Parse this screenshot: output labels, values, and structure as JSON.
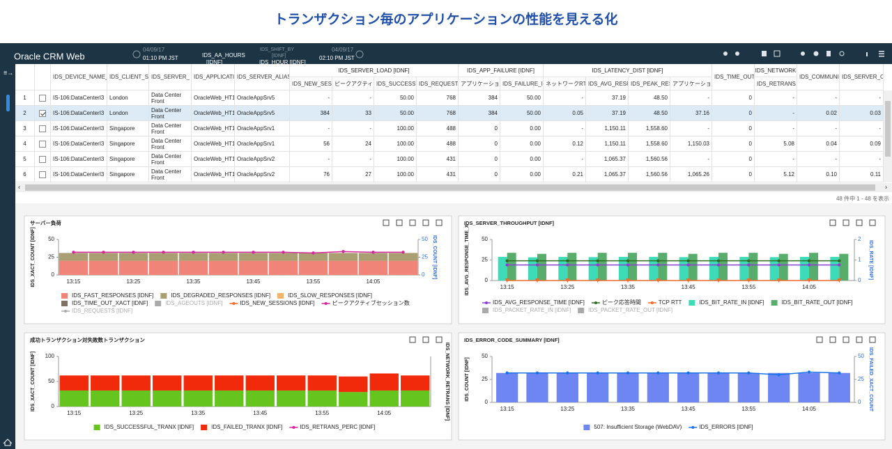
{
  "banner_title": "トランザクション毎のアプリケーションの性能を見える化",
  "header": {
    "app_name": "Oracle CRM Web",
    "start_date": "04/09/17",
    "start_time": "01:10 PM JST",
    "range": "IDS_AA_HOURS",
    "range_unit": "[IDNF]",
    "shift": "IDS_SHIFT_BY",
    "shift_unit": "[IDNF]",
    "interval": "IDS_HOUR [IDNF]",
    "end_date": "04/09/17",
    "end_time": "02:10 PM JST"
  },
  "table": {
    "columns": [
      "IDS_DEVICE_NAME_",
      "IDS_CLIENT_S",
      "IDS_SERVER_",
      "IDS_APPLICATI",
      "IDS_SERVER_ALIAS",
      {
        "group": "IDS_SERVER_LOAD [IDNF]",
        "columns": [
          "IDS_NEW_SES",
          "ピークアクティ",
          "IDS_SUCCESS",
          "IDS_REQUEST"
        ]
      },
      {
        "group": "IDS_APP_FAILURE [IDNF]",
        "columns": [
          "アプリケーショ",
          "IDS_FAILURE_I"
        ]
      },
      {
        "group": "IDS_LATENCY_DIST [IDNF]",
        "columns": [
          "ネットワークRT",
          "IDS_AVG_RESP",
          "IDS_PEAK_RES",
          "アプリケーショ"
        ]
      },
      "IDS_TIME_OUT",
      {
        "group": "IDS_NETWORK",
        "columns": [
          "IDS_RETRANS"
        ]
      },
      "IDS_COMMUNI",
      "IDS_SERVER_C"
    ],
    "rows": [
      {
        "no": 1,
        "checked": false,
        "cells": [
          "IS-106:DataCenterI3",
          "London",
          "Data Center Front",
          "OracleWeb_HT1",
          "OracleAppSrv5",
          "-",
          "-",
          "50.00",
          "768",
          "384",
          "50.00",
          "-",
          "37.19",
          "48.50",
          "-",
          "0",
          "-",
          "-",
          "-"
        ]
      },
      {
        "no": 2,
        "checked": true,
        "cells": [
          "IS-106:DataCenterI3",
          "London",
          "Data Center Front",
          "OracleWeb_HT1",
          "OracleAppSrv5",
          "384",
          "33",
          "50.00",
          "768",
          "384",
          "50.00",
          "0.05",
          "37.19",
          "48.50",
          "37.16",
          "0",
          "-",
          "0.02",
          "0.03"
        ]
      },
      {
        "no": 3,
        "checked": false,
        "cells": [
          "IS-106:DataCenterI3",
          "Singapore",
          "Data Center Front",
          "OracleWeb_HT1",
          "OracleAppSrv1",
          "-",
          "-",
          "100.00",
          "488",
          "0",
          "0.00",
          "-",
          "1,150.11",
          "1,558.60",
          "-",
          "0",
          "-",
          "-",
          "-"
        ]
      },
      {
        "no": 4,
        "checked": false,
        "cells": [
          "IS-106:DataCenterI3",
          "Singapore",
          "Data Center Front",
          "OracleWeb_HT1",
          "OracleAppSrv1",
          "56",
          "24",
          "100.00",
          "488",
          "0",
          "0.00",
          "0.12",
          "1,150.11",
          "1,558.60",
          "1,150.03",
          "0",
          "5.08",
          "0.04",
          "0.09"
        ]
      },
      {
        "no": 5,
        "checked": false,
        "cells": [
          "IS-106:DataCenterI3",
          "Singapore",
          "Data Center Front",
          "OracleWeb_HT1",
          "OracleAppSrv2",
          "-",
          "-",
          "100.00",
          "431",
          "0",
          "0.00",
          "-",
          "1,065.37",
          "1,560.56",
          "-",
          "0",
          "-",
          "-",
          "-"
        ]
      },
      {
        "no": 6,
        "checked": false,
        "cells": [
          "IS-106:DataCenterI3",
          "Singapore",
          "Data Center Front",
          "OracleWeb_HT1",
          "OracleAppSrv2",
          "76",
          "27",
          "100.00",
          "431",
          "0",
          "0.00",
          "0.21",
          "1,065.37",
          "1,560.56",
          "1,065.26",
          "0",
          "5.12",
          "0.10",
          "0.11"
        ]
      }
    ],
    "status": "48 件中 1 - 48 を表示"
  },
  "chart_data": [
    {
      "type": "bar",
      "stacked": true,
      "title": "サーバー負荷",
      "ylabel": "IDS_XACT_COUNT [IDNF]",
      "y2label": "IDS_COUNT [IDNF]",
      "categories": [
        "13:15",
        null,
        "13:25",
        null,
        "13:35",
        null,
        "13:45",
        null,
        "13:55",
        null,
        "14:05",
        null
      ],
      "ylim": [
        0,
        50
      ],
      "yticks": [
        0,
        25,
        50
      ],
      "y2lim": [
        0,
        50
      ],
      "y2ticks": [
        0,
        25,
        50
      ],
      "series": [
        {
          "name": "IDS_FAST_RESPONSES [IDNF]",
          "color": "#f08478",
          "kind": "bar",
          "values": [
            20,
            20,
            20,
            20,
            20,
            20,
            20,
            20,
            20,
            20,
            20,
            20
          ]
        },
        {
          "name": "IDS_DEGRADED_RESPONSES [IDNF]",
          "color": "#a99f73",
          "kind": "bar",
          "values": [
            11,
            11,
            11,
            11,
            11,
            11,
            11,
            11,
            11,
            11,
            11,
            11
          ]
        },
        {
          "name": "IDS_SLOW_RESPONSES [IDNF]",
          "color": "#f6b26b",
          "kind": "bar"
        },
        {
          "name": "IDS_TIME_OUT_XACT [IDNF]",
          "color": "#7f7265",
          "kind": "bar"
        },
        {
          "name": "IDS_AGEOUTS [IDNF]",
          "color": "#a8a8a8",
          "kind": "bar",
          "hidden": true
        },
        {
          "name": "IDS_NEW_SESSIONS [IDNF]",
          "color": "#f06a2a",
          "kind": "line"
        },
        {
          "name": "ピークアクティブセッション数",
          "color": "#d6249b",
          "kind": "line",
          "axis": "y2",
          "values": [
            32,
            32,
            32,
            32,
            32,
            32,
            32,
            32,
            31,
            33,
            32,
            32
          ]
        },
        {
          "name": "IDS_REQUESTS [IDNF]",
          "color": "#a8a8a8",
          "kind": "line",
          "hidden": true
        }
      ]
    },
    {
      "type": "bar",
      "stacked": false,
      "title": "IDS_SERVER_THROUGHPUT [IDNF]",
      "ylabel": "IDS_AVG_RESPONSE_TIME_X",
      "y2label": "IDS_RATE [IDNF]",
      "categories": [
        "13:15",
        null,
        "13:25",
        null,
        "13:35",
        null,
        "13:45",
        null,
        "13:55",
        null,
        "14:05",
        null
      ],
      "ylim": [
        0,
        50
      ],
      "yticks": [
        0,
        25,
        50
      ],
      "y2lim": [
        0,
        2
      ],
      "y2ticks": [
        0,
        1,
        2
      ],
      "series": [
        {
          "name": "IDS_AVG_RESPONSE_TIME [IDNF]",
          "color": "#8a3fd1",
          "kind": "line",
          "values": [
            19,
            19,
            19,
            19,
            19,
            19,
            19,
            19,
            19,
            19,
            19,
            19
          ]
        },
        {
          "name": "ピーク応答時間",
          "color": "#2e6b1f",
          "kind": "line",
          "values": [
            24,
            24,
            24,
            24,
            24,
            24,
            24,
            24,
            24,
            24,
            24,
            24
          ]
        },
        {
          "name": "TCP RTT",
          "color": "#f06a2a",
          "kind": "line",
          "marker": "triangle",
          "values": [
            0,
            0,
            0,
            0,
            0,
            0,
            0,
            0,
            0,
            0,
            0,
            0
          ]
        },
        {
          "name": "IDS_BIT_RATE_IN [IDNF]",
          "color": "#3ddbb8",
          "kind": "bar",
          "axis": "y2",
          "values": [
            1.15,
            1.13,
            1.15,
            1.14,
            1.15,
            1.15,
            1.14,
            1.15,
            1.15,
            1.14,
            1.15,
            1.15
          ]
        },
        {
          "name": "IDS_BIT_RATE_OUT [IDNF]",
          "color": "#58ad6c",
          "kind": "bar",
          "axis": "y2",
          "values": [
            1.35,
            1.3,
            1.35,
            1.35,
            1.35,
            1.35,
            1.3,
            1.35,
            1.35,
            1.3,
            1.35,
            1.3
          ]
        },
        {
          "name": "IDS_PACKET_RATE_IN [IDNF]",
          "color": "#8a8a8a",
          "kind": "bar",
          "hidden": true
        },
        {
          "name": "IDS_PACKET_RATE_OUT [IDNF]",
          "color": "#8a8a8a",
          "kind": "bar",
          "hidden": true
        }
      ]
    },
    {
      "type": "bar",
      "stacked": true,
      "title": "成功トランザクション対失敗数トランザクション",
      "ylabel": "IDS_XACT_COUNT [IDNF]",
      "y2label": "IDS_NETWORK_RETRANS [IDNF]",
      "categories": [
        "13:15",
        null,
        "13:25",
        null,
        "13:35",
        null,
        "13:45",
        null,
        "13:55",
        null,
        "14:05",
        null
      ],
      "ylim": [
        0,
        100
      ],
      "yticks": [
        0,
        50,
        100
      ],
      "series": [
        {
          "name": "IDS_SUCCESSFUL_TRANX [IDNF]",
          "color": "#66c41f",
          "kind": "bar",
          "values": [
            32,
            32,
            32,
            32,
            32,
            32,
            32,
            32,
            32,
            29,
            32,
            32
          ]
        },
        {
          "name": "IDS_FAILED_TRANX [IDNF]",
          "color": "#f02a0a",
          "kind": "bar",
          "values": [
            30,
            30,
            30,
            30,
            30,
            30,
            30,
            30,
            30,
            31,
            34,
            30
          ]
        },
        {
          "name": "IDS_RETRANS_PERC [IDNF]",
          "color": "#d6249b",
          "kind": "line"
        }
      ]
    },
    {
      "type": "bar",
      "stacked": false,
      "title": "IDS_ERROR_CODE_SUMMARY [IDNF]",
      "ylabel": "IDS_COUNT [IDNF]",
      "y2label": "IDS_FAILED_XACT_COUNT",
      "categories": [
        "13:15",
        null,
        "13:25",
        null,
        "13:35",
        null,
        "13:45",
        null,
        "13:55",
        null,
        "14:05",
        null
      ],
      "ylim": [
        0,
        50
      ],
      "yticks": [
        0,
        25,
        50
      ],
      "y2lim": [
        0,
        50
      ],
      "y2ticks": [
        0,
        25,
        50
      ],
      "series": [
        {
          "name": "507: Insufficient Storage (WebDAV)",
          "color": "#6d86f2",
          "kind": "bar",
          "values": [
            32,
            32,
            32,
            32,
            32,
            32,
            32,
            32,
            32,
            32,
            32,
            32
          ]
        },
        {
          "name": "IDS_ERRORS [IDNF]",
          "color": "#1a73e8",
          "kind": "line",
          "axis": "y2",
          "values": [
            32,
            32,
            32,
            32,
            32,
            32,
            32,
            32,
            32,
            30,
            33,
            32
          ]
        }
      ]
    }
  ]
}
